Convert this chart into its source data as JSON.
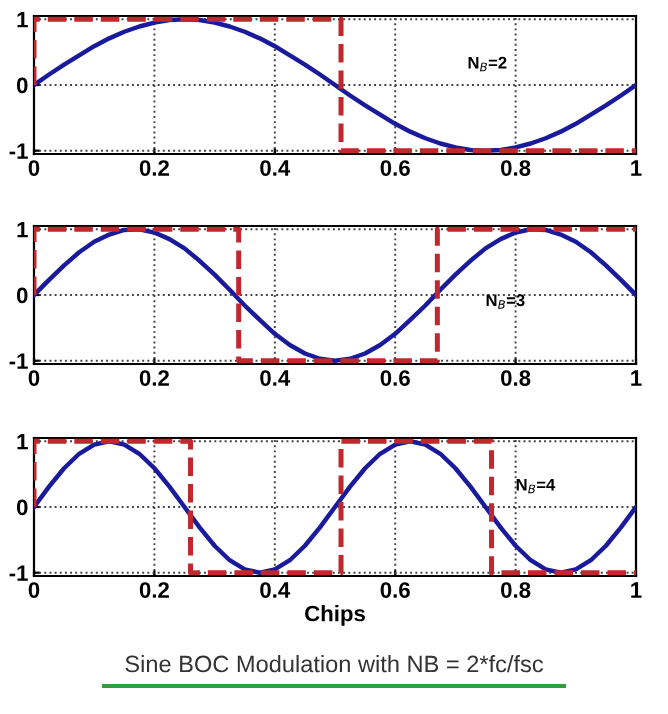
{
  "chart_data": [
    {
      "type": "line",
      "xlim": [
        0,
        1
      ],
      "ylim": [
        -1.05,
        1.05
      ],
      "xticks": [
        0,
        0.2,
        0.4,
        0.6,
        0.8,
        1
      ],
      "yticks": [
        -1,
        0,
        1
      ],
      "grid": true,
      "annotations": [
        "N$_{B}$=2"
      ],
      "series": [
        {
          "color": "#1a1a9c",
          "line_style": "solid",
          "x": [
            0,
            0.025,
            0.05,
            0.075,
            0.1,
            0.125,
            0.15,
            0.175,
            0.2,
            0.225,
            0.25,
            0.275,
            0.3,
            0.325,
            0.35,
            0.375,
            0.4,
            0.425,
            0.45,
            0.475,
            0.5,
            0.525,
            0.55,
            0.575,
            0.6,
            0.625,
            0.65,
            0.675,
            0.7,
            0.725,
            0.75,
            0.775,
            0.8,
            0.825,
            0.85,
            0.875,
            0.9,
            0.925,
            0.95,
            0.975,
            1
          ],
          "values": [
            0,
            0.16,
            0.31,
            0.45,
            0.59,
            0.71,
            0.81,
            0.89,
            0.95,
            0.99,
            1,
            0.99,
            0.95,
            0.89,
            0.81,
            0.71,
            0.59,
            0.45,
            0.31,
            0.16,
            0,
            -0.16,
            -0.31,
            -0.45,
            -0.59,
            -0.71,
            -0.81,
            -0.89,
            -0.95,
            -0.99,
            -1,
            -0.99,
            -0.95,
            -0.89,
            -0.81,
            -0.71,
            -0.59,
            -0.45,
            -0.31,
            -0.16,
            0
          ]
        },
        {
          "color": "#c0282d",
          "line_style": "dashed",
          "x": [
            0,
            0,
            0.51,
            0.51,
            1
          ],
          "values": [
            0,
            1,
            1,
            -1,
            -1
          ]
        }
      ]
    },
    {
      "type": "line",
      "xlim": [
        0,
        1
      ],
      "ylim": [
        -1.05,
        1.05
      ],
      "xticks": [
        0,
        0.2,
        0.4,
        0.6,
        0.8,
        1
      ],
      "yticks": [
        -1,
        0,
        1
      ],
      "grid": true,
      "annotations": [
        "N$_{B}$=3"
      ],
      "series": [
        {
          "color": "#1a1a9c",
          "line_style": "solid",
          "x": [
            0,
            0.025,
            0.05,
            0.075,
            0.1,
            0.125,
            0.15,
            0.175,
            0.2,
            0.225,
            0.25,
            0.275,
            0.3,
            0.325,
            0.35,
            0.375,
            0.4,
            0.425,
            0.45,
            0.475,
            0.5,
            0.525,
            0.55,
            0.575,
            0.6,
            0.625,
            0.65,
            0.675,
            0.7,
            0.725,
            0.75,
            0.775,
            0.8,
            0.825,
            0.85,
            0.875,
            0.9,
            0.925,
            0.95,
            0.975,
            1
          ],
          "values": [
            0,
            0.23,
            0.45,
            0.65,
            0.81,
            0.92,
            0.99,
            1,
            0.95,
            0.85,
            0.71,
            0.52,
            0.31,
            0.08,
            -0.16,
            -0.38,
            -0.59,
            -0.76,
            -0.89,
            -0.97,
            -1,
            -0.97,
            -0.89,
            -0.76,
            -0.59,
            -0.38,
            -0.16,
            0.08,
            0.31,
            0.52,
            0.71,
            0.85,
            0.95,
            1,
            0.99,
            0.92,
            0.81,
            0.65,
            0.45,
            0.23,
            0
          ]
        },
        {
          "color": "#c0282d",
          "line_style": "dashed",
          "x": [
            0,
            0,
            0.34,
            0.34,
            0.67,
            0.67,
            1
          ],
          "values": [
            0,
            1,
            1,
            -1,
            -1,
            1,
            1
          ]
        }
      ]
    },
    {
      "type": "line",
      "xlim": [
        0,
        1
      ],
      "ylim": [
        -1.05,
        1.05
      ],
      "xticks": [
        0,
        0.2,
        0.4,
        0.6,
        0.8,
        1
      ],
      "yticks": [
        -1,
        0,
        1
      ],
      "grid": true,
      "xlabel": "Chips",
      "annotations": [
        "N$_{B}$=4",
        "Sine BOC Modulation with NB = 2*fc/fsc"
      ],
      "series": [
        {
          "color": "#1a1a9c",
          "line_style": "solid",
          "x": [
            0,
            0.025,
            0.05,
            0.075,
            0.1,
            0.125,
            0.15,
            0.175,
            0.2,
            0.225,
            0.25,
            0.275,
            0.3,
            0.325,
            0.35,
            0.375,
            0.4,
            0.425,
            0.45,
            0.475,
            0.5,
            0.525,
            0.55,
            0.575,
            0.6,
            0.625,
            0.65,
            0.675,
            0.7,
            0.725,
            0.75,
            0.775,
            0.8,
            0.825,
            0.85,
            0.875,
            0.9,
            0.925,
            0.95,
            0.975,
            1
          ],
          "values": [
            0,
            0.31,
            0.59,
            0.81,
            0.95,
            1,
            0.95,
            0.81,
            0.59,
            0.31,
            0,
            -0.31,
            -0.59,
            -0.81,
            -0.95,
            -1,
            -0.95,
            -0.81,
            -0.59,
            -0.31,
            0,
            0.31,
            0.59,
            0.81,
            0.95,
            1,
            0.95,
            0.81,
            0.59,
            0.31,
            0,
            -0.31,
            -0.59,
            -0.81,
            -0.95,
            -1,
            -0.95,
            -0.81,
            -0.59,
            -0.31,
            0
          ]
        },
        {
          "color": "#c0282d",
          "line_style": "dashed",
          "x": [
            0,
            0,
            0.26,
            0.26,
            0.51,
            0.51,
            0.76,
            0.76,
            1
          ],
          "values": [
            0,
            1,
            1,
            -1,
            -1,
            1,
            1,
            -1,
            -1
          ]
        }
      ]
    }
  ]
}
